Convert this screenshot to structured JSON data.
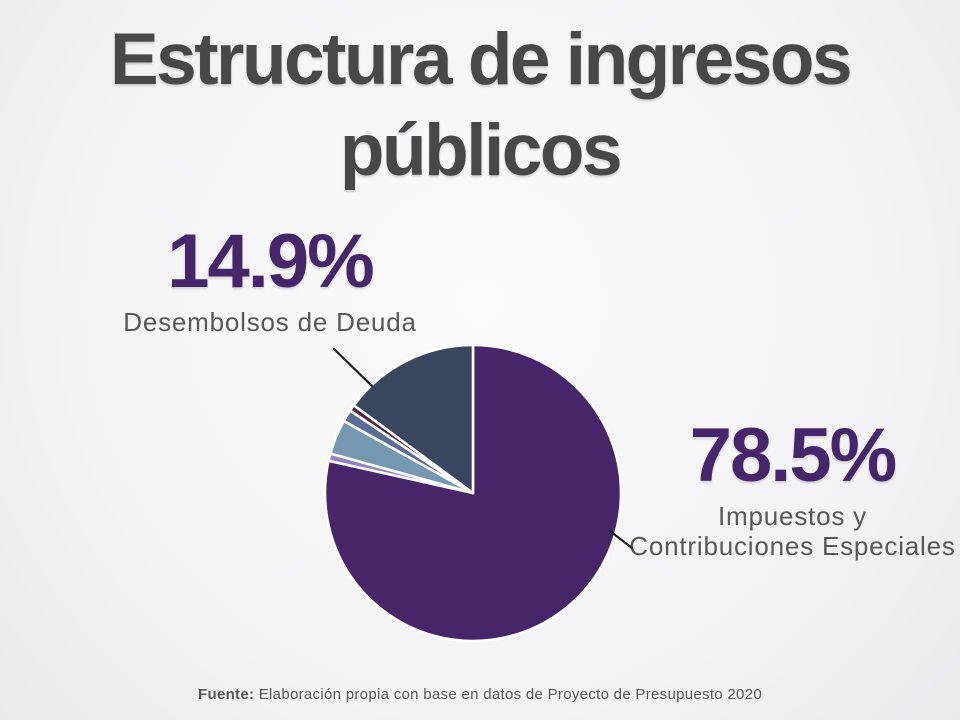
{
  "slide": {
    "title": "Estructura de ingresos públicos"
  },
  "callouts": {
    "left": {
      "value_text": "14.9%",
      "label": "Desembolsos de Deuda"
    },
    "right": {
      "value_text": "78.5%",
      "label_line1": "Impuestos y",
      "label_line2": "Contribuciones Especiales"
    }
  },
  "footer": {
    "prefix": "Fuente:",
    "text": " Elaboración propia con base en datos de Proyecto de Presupuesto 2020"
  },
  "colors": {
    "accent_purple": "#46266b",
    "title_gray": "#48484a",
    "label_gray": "#58585a",
    "leader_line": "#1c1c1c",
    "background": "#f3f3f5"
  },
  "chart_data": {
    "type": "pie",
    "title": "Estructura de ingresos públicos",
    "direction": "clockwise",
    "start_angle_deg": 0,
    "legend_position": "none",
    "labels_shown": [
      "78.5% Impuestos y Contribuciones Especiales",
      "14.9% Desembolsos de Deuda"
    ],
    "slices": [
      {
        "label": "Impuestos y Contribuciones Especiales",
        "value": 78.5,
        "estimated": false,
        "color": "#462669"
      },
      {
        "label": "",
        "value": 0.8,
        "estimated": true,
        "color": "#8e82c2"
      },
      {
        "label": "",
        "value": 3.8,
        "estimated": true,
        "color": "#7598b0"
      },
      {
        "label": "",
        "value": 1.3,
        "estimated": true,
        "color": "#5b6c97"
      },
      {
        "label": "",
        "value": 0.7,
        "estimated": true,
        "color": "#52244a"
      },
      {
        "label": "Desembolsos de Deuda",
        "value": 14.9,
        "estimated": false,
        "color": "#3a465e"
      }
    ],
    "source_note": "Fuente: Elaboración propia con base en datos de Proyecto de Presupuesto 2020"
  }
}
